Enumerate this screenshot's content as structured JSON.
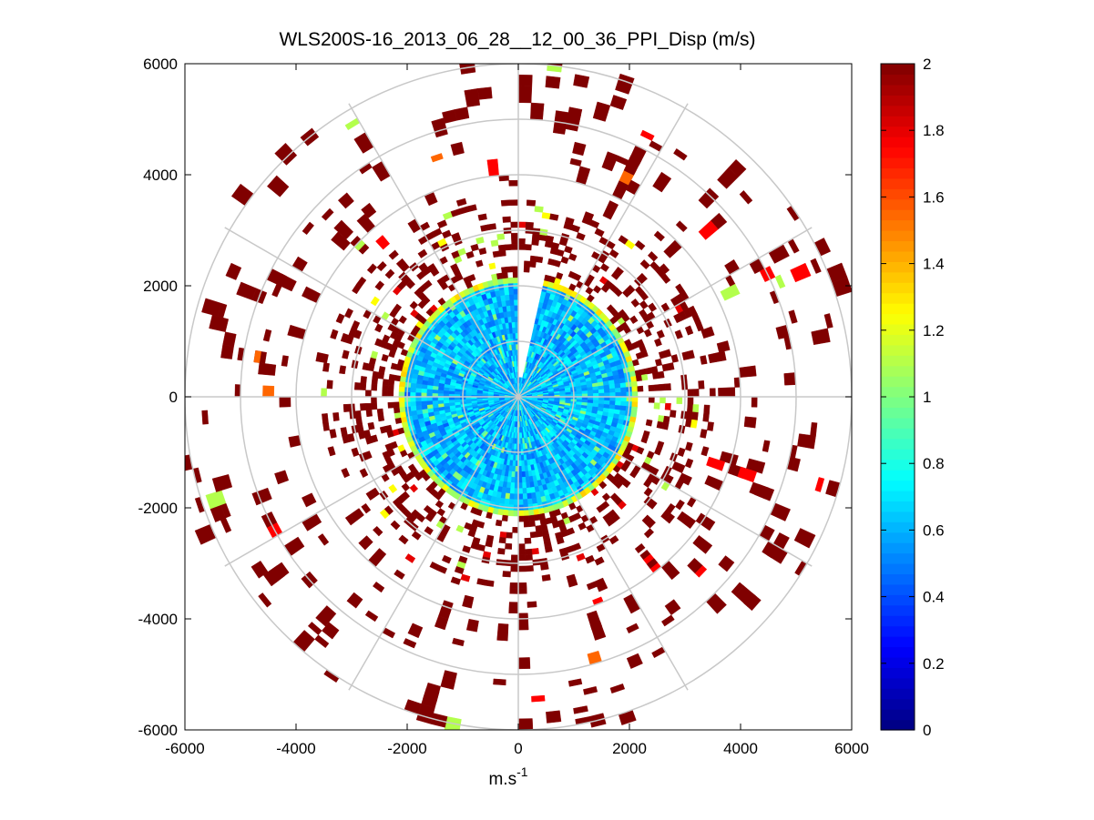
{
  "chart_data": {
    "type": "polar-ppi-heatmap",
    "title": "WLS200S-16_2013_06_28__12_00_36_PPI_Disp (m/s)",
    "xlabel": "m.s",
    "xlabel_superscript": "-1",
    "ylabel": "",
    "xlim": [
      -6000,
      6000
    ],
    "ylim": [
      -6000,
      6000
    ],
    "x_ticks": [
      -6000,
      -4000,
      -2000,
      0,
      2000,
      4000,
      6000
    ],
    "y_ticks": [
      -6000,
      -4000,
      -2000,
      0,
      2000,
      4000,
      6000
    ],
    "x_tick_labels": [
      "-6000",
      "-4000",
      "-2000",
      "0",
      "2000",
      "4000",
      "6000"
    ],
    "y_tick_labels": [
      "-6000",
      "-4000",
      "-2000",
      "0",
      "2000",
      "4000",
      "6000"
    ],
    "polar_grid_rings_m": [
      1000,
      2000,
      3000,
      4000,
      5000,
      6000
    ],
    "polar_grid_spokes_deg": [
      0,
      30,
      60,
      90,
      120,
      150,
      180,
      210,
      240,
      270,
      300,
      330
    ],
    "colorbar": {
      "min": 0,
      "max": 2,
      "colormap": "jet",
      "ticks": [
        0,
        0.2,
        0.4,
        0.6,
        0.8,
        1,
        1.2,
        1.4,
        1.6,
        1.8,
        2
      ],
      "tick_labels": [
        "0",
        "0.2",
        "0.4",
        "0.6",
        "0.8",
        "1",
        "1.2",
        "1.4",
        "1.6",
        "1.8",
        "2"
      ]
    },
    "regions": [
      {
        "name": "inner-core",
        "r_min_m": 0,
        "r_max_m": 2050,
        "typical_value": 0.65,
        "note": "dense cyan/blue returns, gap near azimuth 5-15 deg"
      },
      {
        "name": "core-edge",
        "r_min_m": 2000,
        "r_max_m": 2200,
        "typical_value": 1.2,
        "note": "yellow/green rim"
      },
      {
        "name": "mid-ring",
        "r_min_m": 2200,
        "r_max_m": 3500,
        "typical_value": 2.0,
        "note": "dense saturated dark-red returns"
      },
      {
        "name": "outer-sparse",
        "r_min_m": 3500,
        "r_max_m": 6100,
        "typical_value": 2.0,
        "note": "sparse dark-red returns with occasional red/orange/green cells"
      }
    ],
    "colors": {
      "saturated": "#7f0000",
      "grid": "#c8c8c8",
      "background": "#ffffff"
    }
  }
}
